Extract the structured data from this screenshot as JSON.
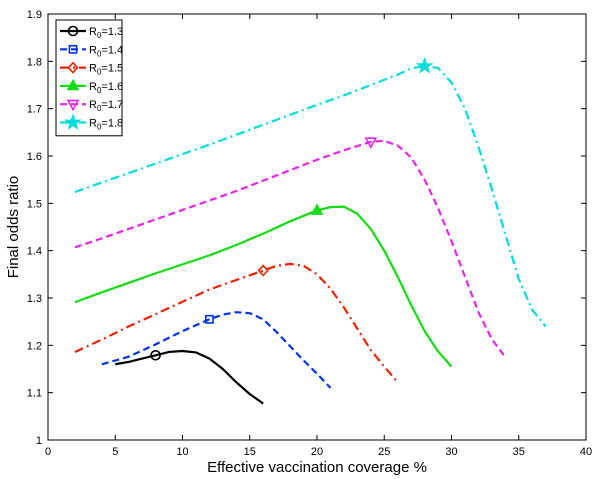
{
  "chart_data": {
    "type": "line",
    "xlabel": "Effective vaccination coverage %",
    "ylabel": "Final odds ratio",
    "xlim": [
      0,
      40
    ],
    "ylim": [
      1,
      1.9
    ],
    "xticks": [
      "0",
      "5",
      "10",
      "15",
      "20",
      "25",
      "30",
      "35",
      "40"
    ],
    "yticks": [
      "1",
      "1.1",
      "1.2",
      "1.3",
      "1.4",
      "1.5",
      "1.6",
      "1.7",
      "1.8",
      "1.9"
    ],
    "grid": false,
    "legend_position": "top-left",
    "series": [
      {
        "name_prefix": "R",
        "name_sub": "0",
        "name_suffix": "=1.3",
        "color": "#000000",
        "dash": "solid",
        "marker": "circle",
        "marker_point": [
          8,
          1.179
        ],
        "x": [
          5,
          6,
          7,
          8,
          9,
          10,
          11,
          12,
          13,
          14,
          15,
          16
        ],
        "y": [
          1.16,
          1.165,
          1.172,
          1.179,
          1.186,
          1.188,
          1.185,
          1.172,
          1.15,
          1.122,
          1.097,
          1.077
        ]
      },
      {
        "name_prefix": "R",
        "name_sub": "0",
        "name_suffix": "=1.4",
        "color": "#0033ee",
        "dash": "dashed",
        "marker": "square",
        "marker_point": [
          12,
          1.255
        ],
        "x": [
          4,
          6,
          8,
          10,
          12,
          13,
          14,
          15,
          16,
          17,
          18,
          19,
          20,
          21
        ],
        "y": [
          1.16,
          1.176,
          1.202,
          1.23,
          1.255,
          1.265,
          1.27,
          1.268,
          1.255,
          1.228,
          1.198,
          1.168,
          1.14,
          1.11
        ]
      },
      {
        "name_prefix": "R",
        "name_sub": "0",
        "name_suffix": "=1.5",
        "color": "#ee2200",
        "dash": "dashdot",
        "marker": "diamond",
        "marker_point": [
          16,
          1.358
        ],
        "x": [
          2,
          4,
          6,
          8,
          10,
          12,
          14,
          16,
          17,
          18,
          19,
          20,
          21,
          22,
          23,
          24,
          25,
          26
        ],
        "y": [
          1.186,
          1.212,
          1.24,
          1.266,
          1.292,
          1.318,
          1.338,
          1.358,
          1.368,
          1.372,
          1.368,
          1.35,
          1.32,
          1.28,
          1.235,
          1.19,
          1.155,
          1.122
        ]
      },
      {
        "name_prefix": "R",
        "name_sub": "0",
        "name_suffix": "=1.6",
        "color": "#11dd11",
        "dash": "solid",
        "marker": "triangle-up",
        "marker_point": [
          20,
          1.485
        ],
        "x": [
          2,
          4,
          6,
          8,
          10,
          12,
          14,
          16,
          18,
          20,
          21,
          22,
          23,
          24,
          25,
          26,
          27,
          28,
          29,
          30
        ],
        "y": [
          1.291,
          1.312,
          1.332,
          1.352,
          1.371,
          1.39,
          1.412,
          1.436,
          1.462,
          1.485,
          1.492,
          1.493,
          1.478,
          1.446,
          1.4,
          1.345,
          1.285,
          1.23,
          1.187,
          1.155
        ]
      },
      {
        "name_prefix": "R",
        "name_sub": "0",
        "name_suffix": "=1.7",
        "color": "#ee22ee",
        "dash": "dashed",
        "marker": "triangle-down",
        "marker_point": [
          24,
          1.63
        ],
        "x": [
          2,
          4,
          6,
          8,
          10,
          12,
          14,
          16,
          18,
          20,
          22,
          24,
          25,
          26,
          27,
          28,
          29,
          30,
          31,
          32,
          33,
          34
        ],
        "y": [
          1.407,
          1.426,
          1.446,
          1.466,
          1.486,
          1.506,
          1.526,
          1.548,
          1.57,
          1.592,
          1.612,
          1.63,
          1.632,
          1.622,
          1.597,
          1.55,
          1.49,
          1.42,
          1.345,
          1.27,
          1.213,
          1.175
        ]
      },
      {
        "name_prefix": "R",
        "name_sub": "0",
        "name_suffix": "=1.8",
        "color": "#00dddd",
        "dash": "dashdot",
        "marker": "pentagram",
        "marker_point": [
          28,
          1.79
        ],
        "x": [
          2,
          4,
          6,
          8,
          10,
          12,
          14,
          16,
          18,
          20,
          22,
          24,
          26,
          27,
          28,
          29,
          30,
          31,
          32,
          33,
          34,
          35,
          36,
          37
        ],
        "y": [
          1.524,
          1.544,
          1.564,
          1.584,
          1.604,
          1.624,
          1.645,
          1.666,
          1.687,
          1.708,
          1.728,
          1.75,
          1.772,
          1.785,
          1.79,
          1.786,
          1.755,
          1.7,
          1.62,
          1.53,
          1.435,
          1.34,
          1.275,
          1.24
        ]
      }
    ]
  }
}
